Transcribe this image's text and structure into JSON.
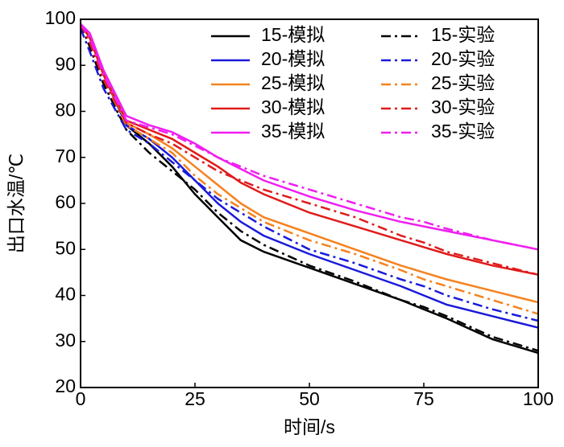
{
  "chart_data": {
    "type": "line",
    "xlabel": "时间/s",
    "ylabel": "出口水温/℃",
    "x": [
      0,
      2,
      5,
      10,
      15,
      20,
      25,
      30,
      35,
      40,
      50,
      60,
      70,
      75,
      80,
      90,
      100
    ],
    "xlim": [
      0,
      100
    ],
    "xticks": [
      0,
      25,
      50,
      75,
      100
    ],
    "ylim": [
      20,
      100
    ],
    "yticks": [
      20,
      30,
      40,
      50,
      60,
      70,
      80,
      90,
      100
    ],
    "legend": "upper right",
    "series": [
      {
        "name": "15-模拟",
        "color": "#000000",
        "line_style": "solid",
        "values": [
          99,
          96,
          88,
          77,
          73,
          68,
          62,
          57,
          52,
          49.5,
          46,
          42.5,
          39,
          37,
          35,
          30.5,
          27.5
        ]
      },
      {
        "name": "15-实验",
        "color": "#000000",
        "line_style": "dashdot",
        "values": [
          99,
          94,
          86,
          76,
          71,
          67,
          63,
          58,
          54,
          51,
          46.5,
          43,
          39,
          37.5,
          35.5,
          31,
          28
        ]
      },
      {
        "name": "20-模拟",
        "color": "#1a1adb",
        "line_style": "solid",
        "values": [
          99,
          96,
          88,
          77,
          74,
          70,
          65,
          60,
          56,
          53,
          49,
          45.5,
          42,
          40,
          38,
          35.5,
          33
        ]
      },
      {
        "name": "20-实验",
        "color": "#1a1adb",
        "line_style": "dashdot",
        "values": [
          98,
          93,
          85,
          76,
          73,
          69,
          65,
          61,
          58,
          55,
          50,
          47,
          43.5,
          42,
          40,
          37,
          34.5
        ]
      },
      {
        "name": "25-模拟",
        "color": "#f5821f",
        "line_style": "solid",
        "values": [
          99,
          96,
          88,
          77.5,
          75,
          72,
          68,
          64,
          60,
          57,
          53.5,
          50,
          46.5,
          45,
          43.5,
          41,
          38.5
        ]
      },
      {
        "name": "25-实验",
        "color": "#f5821f",
        "line_style": "dashdot",
        "values": [
          99,
          95,
          87,
          77,
          74,
          71,
          66,
          62,
          59,
          56,
          52,
          49,
          45.5,
          43.5,
          42,
          39,
          36
        ]
      },
      {
        "name": "30-模拟",
        "color": "#e01b1b",
        "line_style": "solid",
        "values": [
          99,
          96,
          88,
          78,
          76,
          74,
          71,
          68,
          64.5,
          62,
          58,
          55,
          52,
          50.5,
          49,
          46.5,
          44.5
        ]
      },
      {
        "name": "30-实验",
        "color": "#e01b1b",
        "line_style": "dashdot",
        "values": [
          99,
          95,
          87,
          77.5,
          75,
          73,
          70,
          67,
          65,
          63,
          60,
          57,
          53,
          51.5,
          49.5,
          47,
          44.5
        ]
      },
      {
        "name": "35-模拟",
        "color": "#f01ef0",
        "line_style": "solid",
        "values": [
          99,
          97,
          89,
          79,
          77,
          75.5,
          73,
          70,
          67.5,
          65,
          61.5,
          58.5,
          56,
          55,
          54,
          52,
          50
        ]
      },
      {
        "name": "35-实验",
        "color": "#f01ef0",
        "line_style": "dashdot",
        "values": [
          99,
          96,
          88,
          78,
          76.5,
          75,
          72.5,
          70,
          68,
          66,
          63,
          60,
          57,
          56,
          54.5,
          52,
          50
        ]
      }
    ]
  }
}
